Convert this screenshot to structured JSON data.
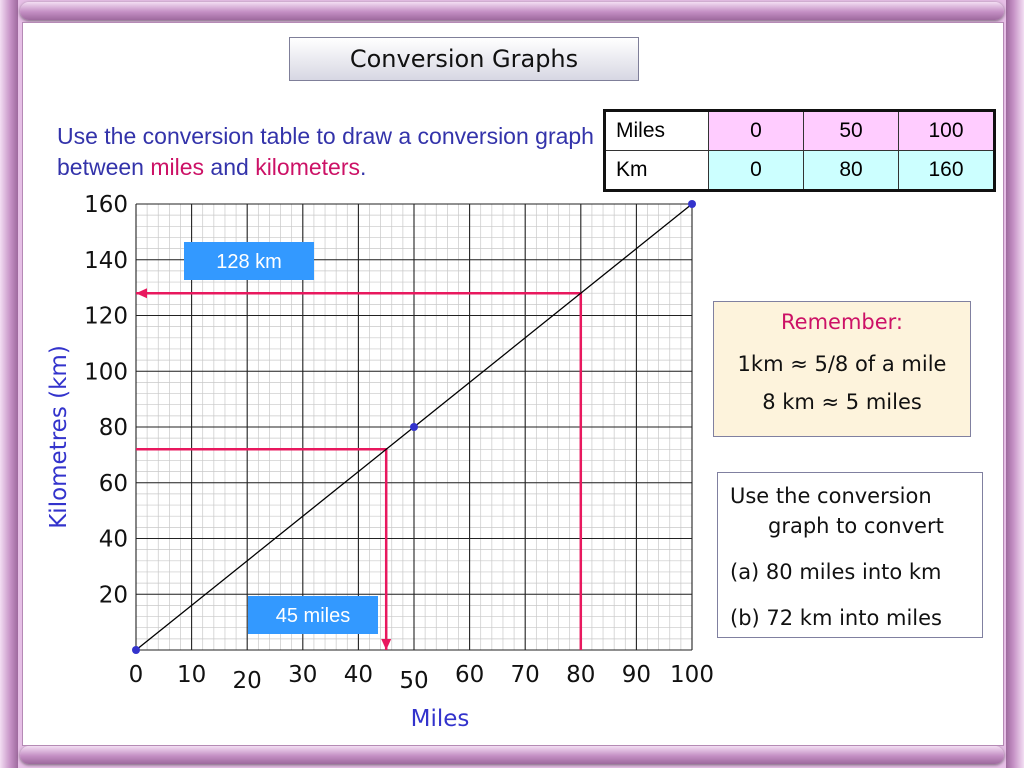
{
  "title": "Conversion Graphs",
  "instruction": {
    "part1": "Use the conversion table to draw a conversion graph between ",
    "miles": "miles",
    "and": " and ",
    "km": "kilometers",
    "end": "."
  },
  "table": {
    "rows": [
      {
        "label": "Miles",
        "values": [
          "0",
          "50",
          "100"
        ]
      },
      {
        "label": "Km",
        "values": [
          "0",
          "80",
          "160"
        ]
      }
    ]
  },
  "remember": {
    "heading": "Remember:",
    "line1": "1km ≈ 5/8 of a mile",
    "line2": "8 km ≈ 5 miles"
  },
  "task": {
    "line1": "Use the conversion",
    "line2": "graph to convert",
    "q1": "(a) 80 miles into km",
    "q2": "(b) 72 km into miles"
  },
  "chart_data": {
    "type": "line",
    "xlabel": "Miles",
    "ylabel": "Kilometres (km)",
    "xlim": [
      0,
      100
    ],
    "ylim": [
      0,
      160
    ],
    "x_ticks": [
      "0",
      "10",
      "20",
      "30",
      "40",
      "50",
      "60",
      "70",
      "80",
      "90",
      "100"
    ],
    "y_ticks": [
      "20",
      "40",
      "60",
      "80",
      "100",
      "120",
      "140",
      "160"
    ],
    "grid": true,
    "series": [
      {
        "values": [
          [
            0,
            0
          ],
          [
            50,
            80
          ],
          [
            100,
            160
          ]
        ],
        "color": "#000000",
        "marker_color": "#3333cc"
      }
    ],
    "annotations": [
      {
        "label": "128 km",
        "from": [
          80,
          0
        ],
        "corner": [
          80,
          128
        ],
        "to": [
          0,
          128
        ],
        "color": "#e8185e"
      },
      {
        "label": "45 miles",
        "from": [
          0,
          72
        ],
        "corner": [
          45,
          72
        ],
        "to": [
          45,
          0
        ],
        "color": "#e8185e"
      }
    ],
    "label_color": "#3399ff",
    "accent_color": "#e8185e"
  }
}
